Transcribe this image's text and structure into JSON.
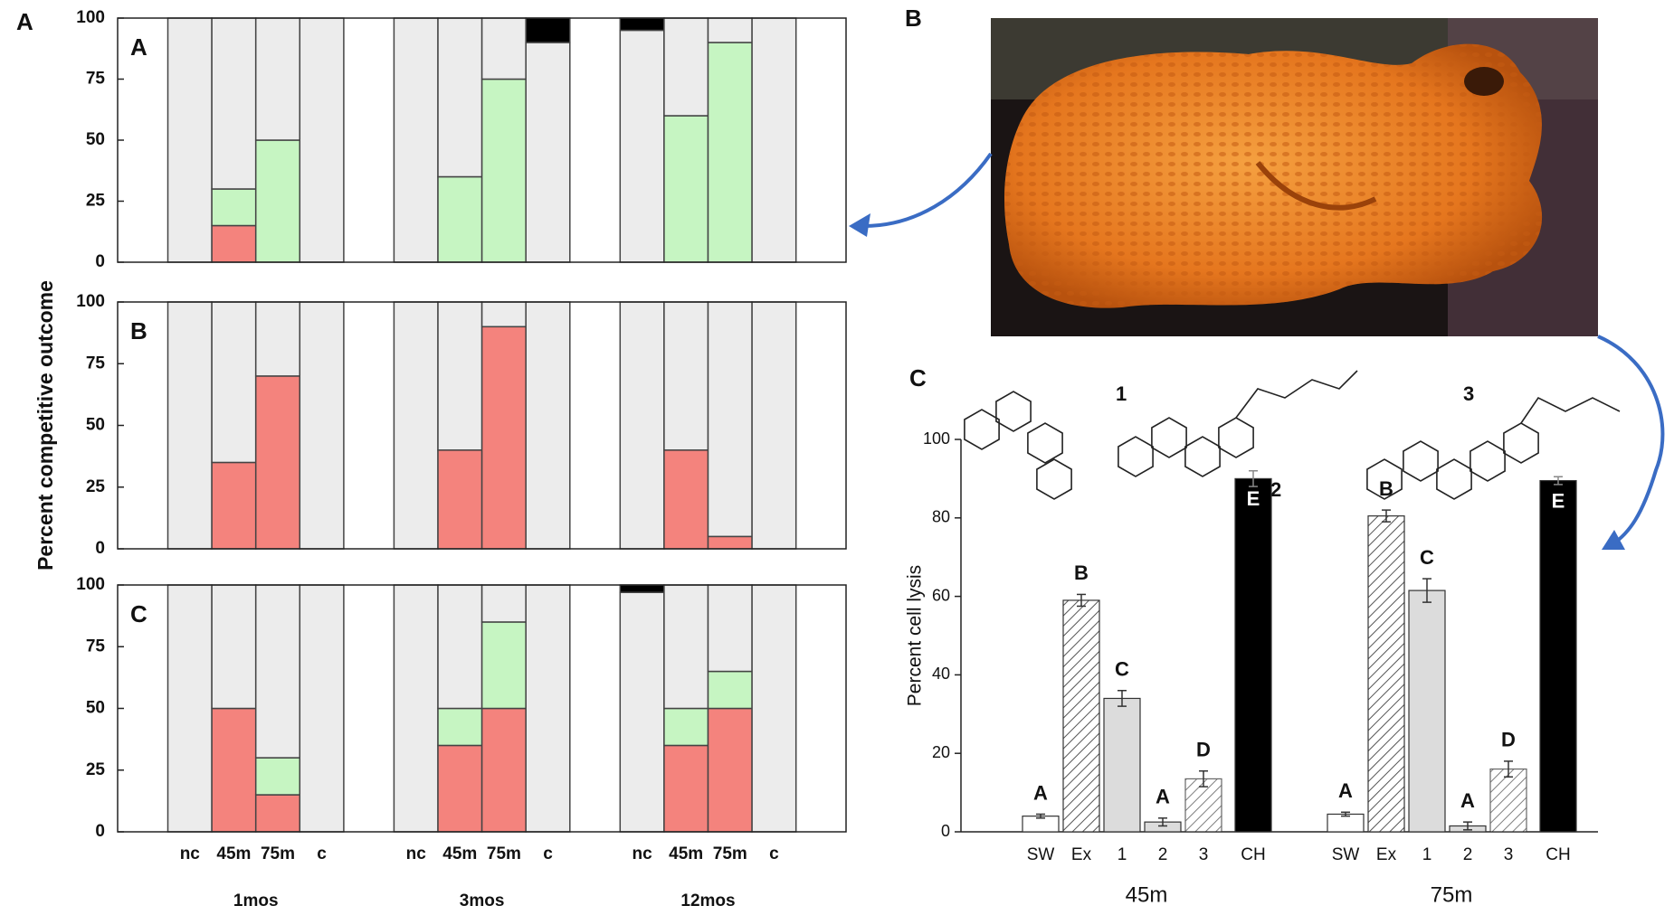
{
  "figure_labels": [
    "A",
    "B",
    "C"
  ],
  "compounds": [
    "1",
    "2",
    "3"
  ],
  "chart_data": [
    {
      "type": "stacked_bar",
      "label": "A",
      "ylim": [
        0,
        100
      ],
      "yticks": [
        0,
        25,
        50,
        75,
        100
      ],
      "series": [
        {
          "color": "#f4837d",
          "values": [
            0,
            15,
            0,
            0,
            0,
            0,
            0,
            0,
            0,
            0,
            0,
            0
          ]
        },
        {
          "color": "#c6f5c2",
          "values": [
            0,
            15,
            50,
            0,
            0,
            35,
            75,
            0,
            0,
            60,
            90,
            0
          ]
        },
        {
          "color": "#ececec",
          "values": [
            100,
            70,
            50,
            100,
            100,
            65,
            25,
            90,
            95,
            40,
            10,
            100
          ]
        },
        {
          "color": "#000000",
          "values": [
            0,
            0,
            0,
            0,
            0,
            0,
            0,
            10,
            5,
            0,
            0,
            0
          ]
        }
      ]
    },
    {
      "type": "stacked_bar",
      "label": "B",
      "ylabel": "Percent competitive outcome",
      "ylim": [
        0,
        100
      ],
      "yticks": [
        0,
        25,
        50,
        75,
        100
      ],
      "series": [
        {
          "color": "#f4837d",
          "values": [
            0,
            35,
            70,
            0,
            0,
            40,
            90,
            0,
            0,
            40,
            5,
            0
          ]
        },
        {
          "color": "#ececec",
          "values": [
            100,
            65,
            30,
            100,
            100,
            60,
            10,
            100,
            100,
            60,
            95,
            100
          ]
        }
      ]
    },
    {
      "type": "stacked_bar",
      "label": "C",
      "ylim": [
        0,
        100
      ],
      "yticks": [
        0,
        25,
        50,
        75,
        100
      ],
      "categories": [
        "nc",
        "45m",
        "75m",
        "c",
        "nc",
        "45m",
        "75m",
        "c",
        "nc",
        "45m",
        "75m",
        "c"
      ],
      "groups": [
        "1mos",
        "3mos",
        "12mos"
      ],
      "series": [
        {
          "color": "#f4837d",
          "values": [
            0,
            50,
            15,
            0,
            0,
            35,
            50,
            0,
            0,
            35,
            50,
            0
          ]
        },
        {
          "color": "#c6f5c2",
          "values": [
            0,
            0,
            15,
            0,
            0,
            15,
            35,
            0,
            0,
            15,
            15,
            0
          ]
        },
        {
          "color": "#ececec",
          "values": [
            100,
            50,
            70,
            100,
            100,
            50,
            15,
            100,
            97,
            50,
            35,
            100
          ]
        },
        {
          "color": "#000000",
          "values": [
            0,
            0,
            0,
            0,
            0,
            0,
            0,
            0,
            3,
            0,
            0,
            0
          ]
        }
      ]
    },
    {
      "type": "bar_error",
      "ylabel": "Percent cell lysis",
      "ylim": [
        0,
        100
      ],
      "yticks": [
        0,
        20,
        40,
        60,
        80,
        100
      ],
      "categories": [
        "SW",
        "Ex",
        "1",
        "2",
        "3",
        "CH"
      ],
      "colors": [
        "#ffffff",
        "#ffffff",
        "#dcdcdc",
        "#dcdcdc",
        "#ffffff",
        "#000000"
      ],
      "hatch": [
        false,
        true,
        false,
        false,
        true,
        false
      ],
      "series": [
        {
          "name": "45m",
          "values": [
            4,
            59,
            34,
            2.5,
            13.5,
            90
          ],
          "errors": [
            0.5,
            1.5,
            2,
            1,
            2,
            2
          ],
          "letters": [
            "A",
            "B",
            "C",
            "A",
            "D",
            "E"
          ]
        },
        {
          "name": "75m",
          "values": [
            4.5,
            80.5,
            61.5,
            1.5,
            16,
            89.5
          ],
          "errors": [
            0.5,
            1.5,
            3,
            1,
            2,
            1
          ],
          "letters": [
            "A",
            "B",
            "C",
            "A",
            "D",
            "E"
          ]
        }
      ]
    }
  ]
}
